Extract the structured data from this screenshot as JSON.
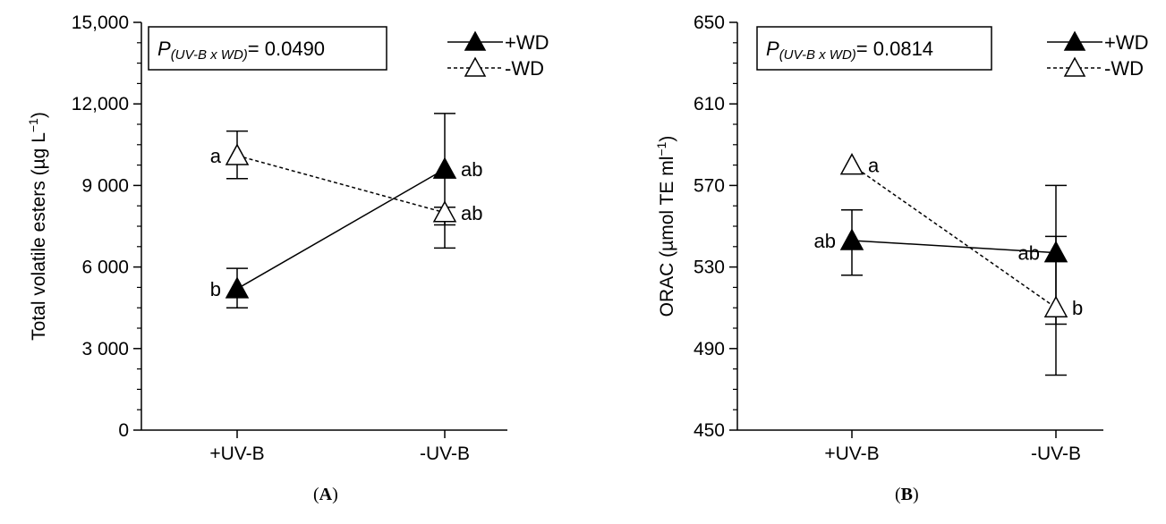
{
  "chart_data": [
    {
      "type": "line",
      "panel": "A",
      "ylabel": "Total volatile esters (µg L",
      "ylabel_sup": "−1",
      "ylabel_end": ")",
      "ylim": [
        0,
        15000
      ],
      "yticks": [
        0,
        3000,
        6000,
        9000,
        12000,
        15000
      ],
      "ytick_labels": [
        "0",
        "3 000",
        "6 000",
        "9 000",
        "12,000",
        "15,000"
      ],
      "categories": [
        "+UV-B",
        "-UV-B"
      ],
      "annotation": {
        "p_label": "P",
        "p_sub": "(UV-B x WD)",
        "p_value": "= 0.0490"
      },
      "series": [
        {
          "name": "+WD",
          "marker": "filled-triangle",
          "line": "solid",
          "values": [
            5200,
            9600
          ],
          "err_low": [
            4500,
            7550
          ],
          "err_high": [
            5950,
            11650
          ],
          "labels": [
            "b",
            "ab"
          ]
        },
        {
          "name": "-WD",
          "marker": "open-triangle",
          "line": "dashed",
          "values": [
            10100,
            8000
          ],
          "err_low": [
            9250,
            6700
          ],
          "err_high": [
            11000,
            8200
          ],
          "labels": [
            "a",
            "ab"
          ]
        }
      ]
    },
    {
      "type": "line",
      "panel": "B",
      "ylabel": "ORAC (µmol TE ml",
      "ylabel_sup": "−1",
      "ylabel_end": ")",
      "ylim": [
        450,
        650
      ],
      "yticks": [
        450,
        490,
        530,
        570,
        610,
        650
      ],
      "ytick_labels": [
        "450",
        "490",
        "530",
        "570",
        "610",
        "650"
      ],
      "categories": [
        "+UV-B",
        "-UV-B"
      ],
      "annotation": {
        "p_label": "P",
        "p_sub": "(UV-B x WD)",
        "p_value": "= 0.0814"
      },
      "series": [
        {
          "name": "+WD",
          "marker": "filled-triangle",
          "line": "solid",
          "values": [
            543,
            537
          ],
          "err_low": [
            526,
            502
          ],
          "err_high": [
            558,
            570
          ],
          "labels": [
            "ab",
            "ab"
          ]
        },
        {
          "name": "-WD",
          "marker": "open-triangle",
          "line": "dashed",
          "values": [
            580,
            510
          ],
          "err_low": [
            580,
            477
          ],
          "err_high": [
            580,
            545
          ],
          "labels": [
            "a",
            "b"
          ]
        }
      ]
    }
  ],
  "panel_labels": {
    "a": "A",
    "b": "B"
  }
}
